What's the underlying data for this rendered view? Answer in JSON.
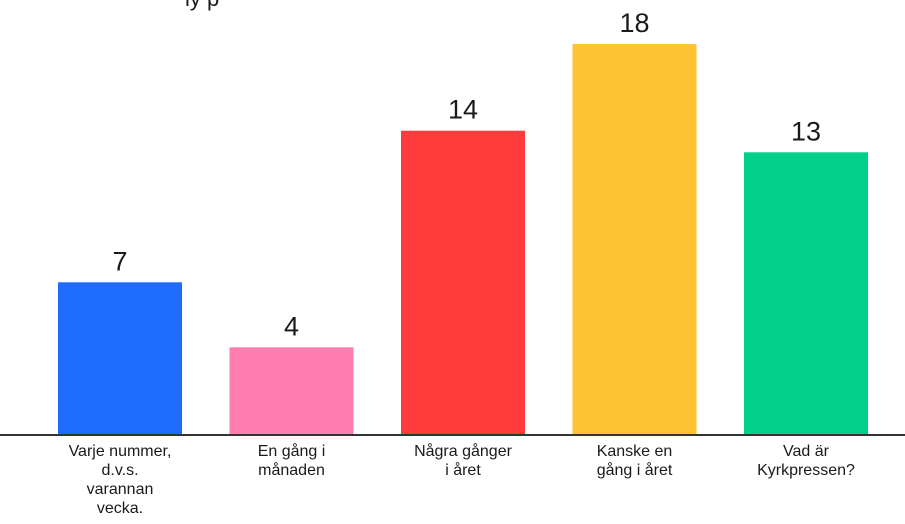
{
  "chart_data": {
    "type": "bar",
    "title_fragment": "iy p",
    "categories": [
      [
        "Varje nummer,",
        "d.v.s.",
        "varannan",
        "vecka."
      ],
      [
        "En gång i",
        "månaden"
      ],
      [
        "Några gånger",
        "i året"
      ],
      [
        "Kanske en",
        "gång i året"
      ],
      [
        "Vad är",
        "Kyrkpressen?"
      ]
    ],
    "values": [
      7,
      4,
      14,
      18,
      13
    ],
    "colors": [
      "#1f6bff",
      "#ff7eaf",
      "#ff3b3b",
      "#ffc233",
      "#00d08a"
    ],
    "ylim": [
      0,
      18
    ],
    "axis_color": "#333333",
    "grid": false
  }
}
